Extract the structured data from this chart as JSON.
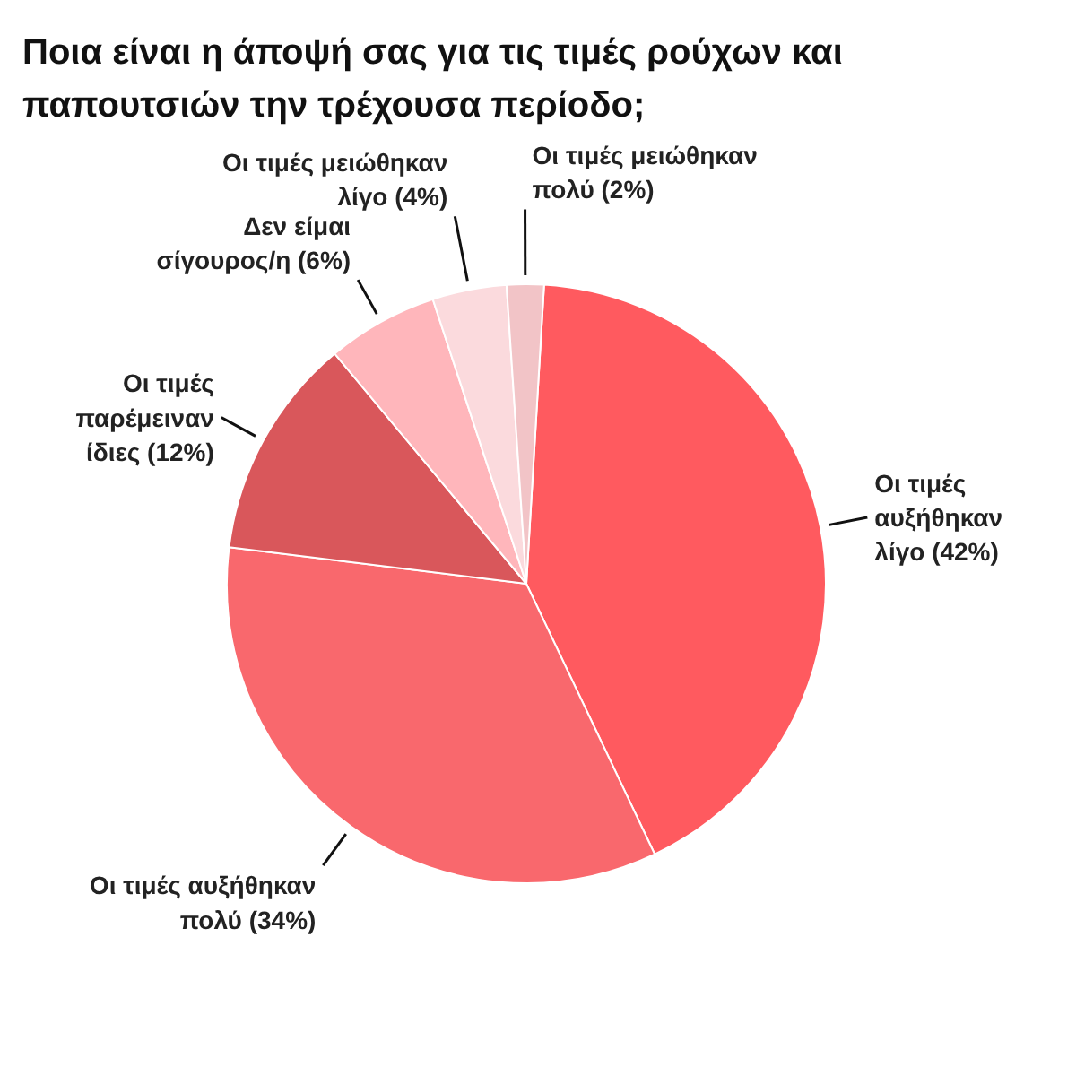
{
  "chart_data": {
    "type": "pie",
    "title": "Ποια είναι η άποψή σας για τις τιμές ρούχων και παπουτσιών την τρέχουσα περίοδο;",
    "categories": [
      "Οι τιμές αυξήθηκαν λίγο",
      "Οι τιμές αυξήθηκαν πολύ",
      "Οι τιμές παρέμειναν ίδιες",
      "Δεν είμαι σίγουρος/η",
      "Οι τιμές μειώθηκαν λίγο",
      "Οι τιμές μειώθηκαν πολύ"
    ],
    "values": [
      42,
      34,
      12,
      6,
      4,
      2
    ],
    "value_labels": [
      "(42%)",
      "(34%)",
      "(12%)",
      "(6%)",
      "(4%)",
      "(2%)"
    ],
    "colors": [
      "#ff5a5f",
      "#f9686d",
      "#d9575b",
      "#ffb6bb",
      "#fbdadd",
      "#f2c4c7"
    ]
  }
}
